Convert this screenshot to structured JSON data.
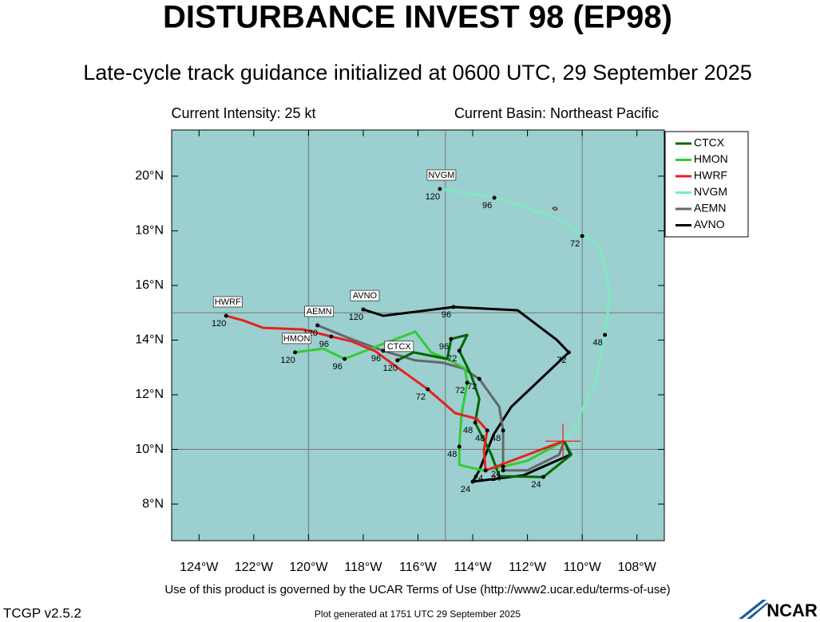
{
  "chart_data": {
    "type": "track",
    "title": "DISTURBANCE INVEST 98 (EP98)",
    "subtitle": "Late-cycle track guidance initialized at 0600 UTC, 29 September 2025",
    "intensity": "Current Intensity: 25 kt",
    "basin": "Current Basin: Northeast Pacific",
    "xlim": [
      -125,
      -107
    ],
    "ylim": [
      6.66,
      21.69
    ],
    "xticks": [
      {
        "value": -124,
        "label": "124°W"
      },
      {
        "value": -122,
        "label": "122°W"
      },
      {
        "value": -120,
        "label": "120°W"
      },
      {
        "value": -118,
        "label": "118°W"
      },
      {
        "value": -116,
        "label": "116°W"
      },
      {
        "value": -114,
        "label": "114°W"
      },
      {
        "value": -112,
        "label": "112°W"
      },
      {
        "value": -110,
        "label": "110°W"
      },
      {
        "value": -108,
        "label": "108°W"
      }
    ],
    "yticks": [
      {
        "value": 8,
        "label": "8°N"
      },
      {
        "value": 10,
        "label": "10°N"
      },
      {
        "value": 12,
        "label": "12°N"
      },
      {
        "value": 14,
        "label": "14°N"
      },
      {
        "value": 16,
        "label": "16°N"
      },
      {
        "value": 18,
        "label": "18°N"
      },
      {
        "value": 20,
        "label": "20°N"
      }
    ],
    "grid_lon": [
      -120,
      -115,
      -110
    ],
    "grid_lat": [
      10,
      15
    ],
    "current_lon": -110.7,
    "current_lat": 10.3,
    "series": [
      {
        "name": "NVGM",
        "color": "#80e8c0",
        "lon": [
          -110.66,
          -110.19,
          -110.08,
          -109.52,
          -109.17,
          -109.0,
          -109.09,
          -109.43,
          -110.0,
          -110.84,
          -111.72,
          -113.21,
          -114.49,
          -115.2
        ],
        "lat": [
          10.31,
          10.83,
          11.3,
          12.44,
          14.19,
          15.5,
          16.41,
          17.55,
          17.81,
          18.42,
          18.72,
          19.21,
          19.42,
          19.53
        ],
        "labels": [
          null,
          null,
          null,
          null,
          "48",
          null,
          null,
          null,
          "72",
          null,
          null,
          "96",
          null,
          "120"
        ]
      },
      {
        "name": "AVNO",
        "color": "#000000",
        "lon": [
          -110.66,
          -110.43,
          -112.15,
          -114.0,
          -113.76,
          -113.24,
          -112.59,
          -110.49,
          -110.93,
          -112.36,
          -114.7,
          -117.27,
          -118.0
        ],
        "lat": [
          10.31,
          9.81,
          9.05,
          8.82,
          9.23,
          10.54,
          11.56,
          13.55,
          14.01,
          15.09,
          15.21,
          14.89,
          15.12
        ],
        "labels": [
          null,
          null,
          null,
          "24",
          null,
          null,
          null,
          "72",
          null,
          null,
          "96",
          null,
          "120"
        ]
      },
      {
        "name": "AEMN",
        "color": "#666666",
        "lon": [
          -110.66,
          -110.84,
          -112.01,
          -112.89,
          -112.89,
          -113.03,
          -113.76,
          -114.35,
          -115.08,
          -116.1,
          -117.27,
          -118.44,
          -119.67
        ],
        "lat": [
          10.31,
          9.81,
          9.23,
          9.23,
          10.69,
          11.56,
          12.58,
          12.96,
          13.17,
          13.26,
          13.61,
          14.04,
          14.54
        ],
        "labels": [
          null,
          null,
          null,
          "24",
          "48",
          null,
          "72",
          null,
          null,
          null,
          "96",
          null,
          "120"
        ]
      },
      {
        "name": "HMON",
        "color": "#33cc33",
        "lon": [
          -110.66,
          -112.01,
          -112.89,
          -113.62,
          -114.49,
          -114.49,
          -114.41,
          -114.2,
          -114.29,
          -114.93,
          -115.52,
          -116.1,
          -117.57,
          -118.68,
          -119.47,
          -120.49
        ],
        "lat": [
          10.31,
          9.58,
          9.37,
          9.23,
          9.43,
          10.1,
          11.27,
          12.44,
          12.96,
          13.31,
          13.55,
          14.31,
          13.75,
          13.31,
          13.69,
          13.55
        ],
        "labels": [
          null,
          null,
          "24",
          null,
          null,
          "48",
          null,
          "72",
          null,
          null,
          null,
          null,
          null,
          "96",
          null,
          "120"
        ]
      },
      {
        "name": "CTCX",
        "color": "#006600",
        "lon": [
          -110.66,
          -110.4,
          -111.42,
          -113.03,
          -113.32,
          -113.91,
          -113.76,
          -114.06,
          -114.49,
          -114.2,
          -114.79,
          -114.93,
          -116.16,
          -116.75
        ],
        "lat": [
          10.31,
          9.81,
          8.99,
          9.02,
          9.81,
          10.98,
          11.85,
          12.73,
          13.61,
          14.19,
          14.04,
          13.31,
          13.55,
          13.26
        ],
        "labels": [
          null,
          null,
          "24",
          null,
          null,
          "48",
          null,
          null,
          "72",
          null,
          "96",
          null,
          null,
          "120"
        ]
      },
      {
        "name": "HWRF",
        "color": "#e8201c",
        "lon": [
          -110.66,
          -112.59,
          -113.53,
          -113.59,
          -113.47,
          -113.85,
          -114.64,
          -115.64,
          -116.78,
          -117.57,
          -118.44,
          -119.17,
          -120.2,
          -121.66,
          -122.39,
          -123.01
        ],
        "lat": [
          10.31,
          9.58,
          9.23,
          9.96,
          10.69,
          11.12,
          11.33,
          12.2,
          13.02,
          13.6,
          13.96,
          14.13,
          14.39,
          14.45,
          14.72,
          14.89
        ],
        "labels": [
          null,
          null,
          "24",
          null,
          "48",
          null,
          null,
          "72",
          null,
          null,
          null,
          "96",
          null,
          null,
          null,
          "120"
        ]
      }
    ],
    "legend_order": [
      4,
      3,
      5,
      0,
      2,
      1
    ]
  },
  "footer": {
    "terms": "Use of this product is governed by the UCAR Terms of Use (http://www2.ucar.edu/terms-of-use)",
    "version": "TCGP v2.5.2",
    "generated": "Plot generated at 1751 UTC  29 September 2025",
    "logo": "NCAR"
  }
}
